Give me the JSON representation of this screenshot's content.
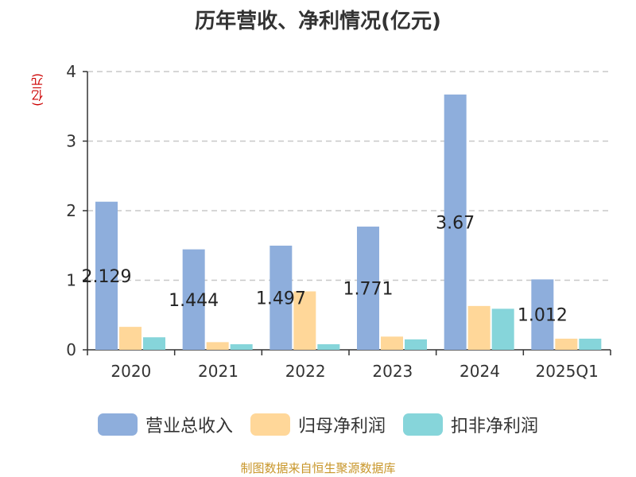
{
  "chart_data": {
    "type": "bar",
    "title": "历年营收、净利情况(亿元)",
    "unit_label": "(亿元)",
    "categories": [
      "2020",
      "2021",
      "2022",
      "2023",
      "2024",
      "2025Q1"
    ],
    "series": [
      {
        "name": "营业总收入",
        "color": "#8eaedc",
        "values": [
          2.129,
          1.444,
          1.497,
          1.771,
          3.67,
          1.012
        ],
        "data_labels": [
          "2.129",
          "1.444",
          "1.497",
          "1.771",
          "3.67",
          "1.012"
        ]
      },
      {
        "name": "归母净利润",
        "color": "#ffd799",
        "values": [
          0.33,
          0.11,
          0.84,
          0.19,
          0.63,
          0.16
        ]
      },
      {
        "name": "扣非净利润",
        "color": "#86d5da",
        "values": [
          0.18,
          0.08,
          0.08,
          0.15,
          0.59,
          0.16
        ]
      }
    ],
    "ylim": [
      0,
      4
    ],
    "yticks": [
      "0",
      "1",
      "2",
      "3",
      "4"
    ],
    "grid": true,
    "legend_position": "bottom"
  },
  "source": "制图数据来自恒生聚源数据库"
}
